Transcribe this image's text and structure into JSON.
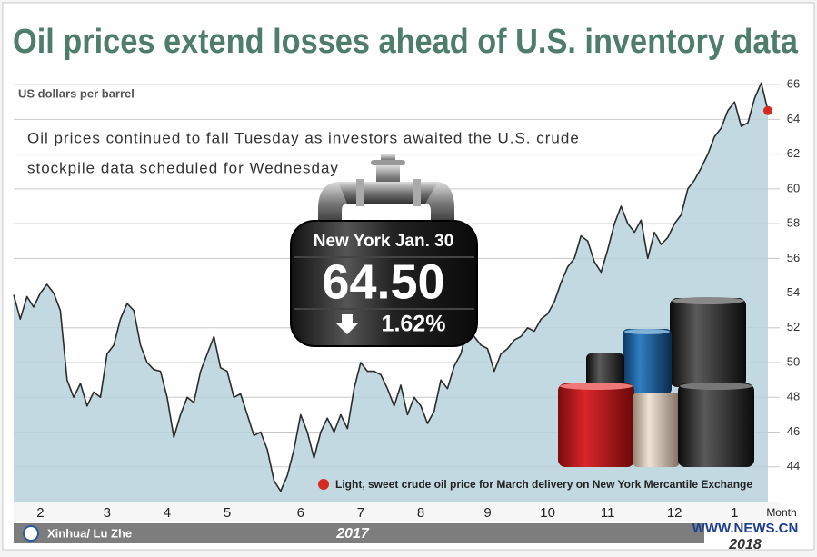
{
  "chart_data": {
    "type": "line",
    "title": "Oil prices extend losses ahead of U.S. inventory data",
    "y_label": "US dollars per barrel",
    "x_label": "Month",
    "annotation": [
      "Oil prices continued to fall Tuesday as investors awaited the U.S. crude",
      "stockpile data scheduled for Wednesday"
    ],
    "callout": {
      "place": "New York  Jan. 30",
      "price": "64.50",
      "change": "1.62%"
    },
    "periods": [
      "2017",
      "2018"
    ],
    "credit": "Xinhua/ Lu Zhe",
    "watermark": "WWW.NEWS.CN",
    "categories": [
      null,
      null,
      null,
      null,
      "2",
      null,
      null,
      null,
      null,
      null,
      null,
      null,
      null,
      null,
      "3",
      null,
      null,
      null,
      null,
      null,
      null,
      null,
      null,
      "4",
      null,
      null,
      null,
      null,
      null,
      null,
      null,
      null,
      "5",
      null,
      null,
      null,
      null,
      null,
      null,
      null,
      null,
      null,
      null,
      "6",
      null,
      null,
      null,
      null,
      null,
      null,
      null,
      null,
      "7",
      null,
      null,
      null,
      null,
      null,
      null,
      null,
      null,
      "8",
      null,
      null,
      null,
      null,
      null,
      null,
      null,
      null,
      null,
      "9",
      null,
      null,
      null,
      null,
      null,
      null,
      null,
      null,
      "10",
      null,
      null,
      null,
      null,
      null,
      null,
      null,
      null,
      "11",
      null,
      null,
      null,
      null,
      null,
      null,
      null,
      null,
      null,
      "12",
      null,
      null,
      null,
      null,
      null,
      null,
      null,
      null,
      "1",
      null,
      null,
      null,
      null,
      null
    ],
    "series": [
      {
        "name": "Light, sweet crude oil price for March delivery on New York Mercantile Exchange",
        "color": "#2b2b2b",
        "area_color": "#b8d2dc",
        "marker_color": "#d42a22",
        "values": [
          53.9,
          52.5,
          53.8,
          53.2,
          54,
          54.5,
          54,
          53,
          49,
          48,
          48.8,
          47.5,
          48.3,
          48,
          50.5,
          51,
          52.5,
          53.4,
          53,
          51,
          50,
          49.6,
          49.5,
          48,
          45.7,
          47,
          48,
          47.7,
          49.5,
          50.5,
          51.5,
          49.7,
          49.5,
          48,
          48.2,
          47,
          45.8,
          46,
          45,
          43.2,
          42.6,
          43.5,
          45,
          47,
          46,
          44.5,
          46,
          46.8,
          46,
          47,
          46.2,
          48.5,
          50,
          49.5,
          49.5,
          49.3,
          48.5,
          47.5,
          48.7,
          47,
          48,
          47.5,
          46.5,
          47.2,
          49,
          48.5,
          49.8,
          50.5,
          52,
          51.5,
          51,
          50.8,
          49.5,
          50.5,
          50.8,
          51.3,
          51.5,
          52,
          51.8,
          52.5,
          52.8,
          53.5,
          54.6,
          55.5,
          56,
          57.3,
          57,
          55.8,
          55.2,
          56.5,
          58,
          59,
          58,
          57.5,
          58.2,
          56,
          57.5,
          56.8,
          57.2,
          58,
          58.5,
          60,
          60.5,
          61.2,
          62,
          63,
          63.5,
          64.5,
          65,
          63.6,
          63.8,
          65.2,
          66.1,
          64.5
        ]
      }
    ],
    "ylim": [
      42,
      67
    ],
    "yticks": [
      44,
      46,
      48,
      50,
      52,
      54,
      56,
      58,
      60,
      62,
      64,
      66
    ],
    "grid": true
  }
}
